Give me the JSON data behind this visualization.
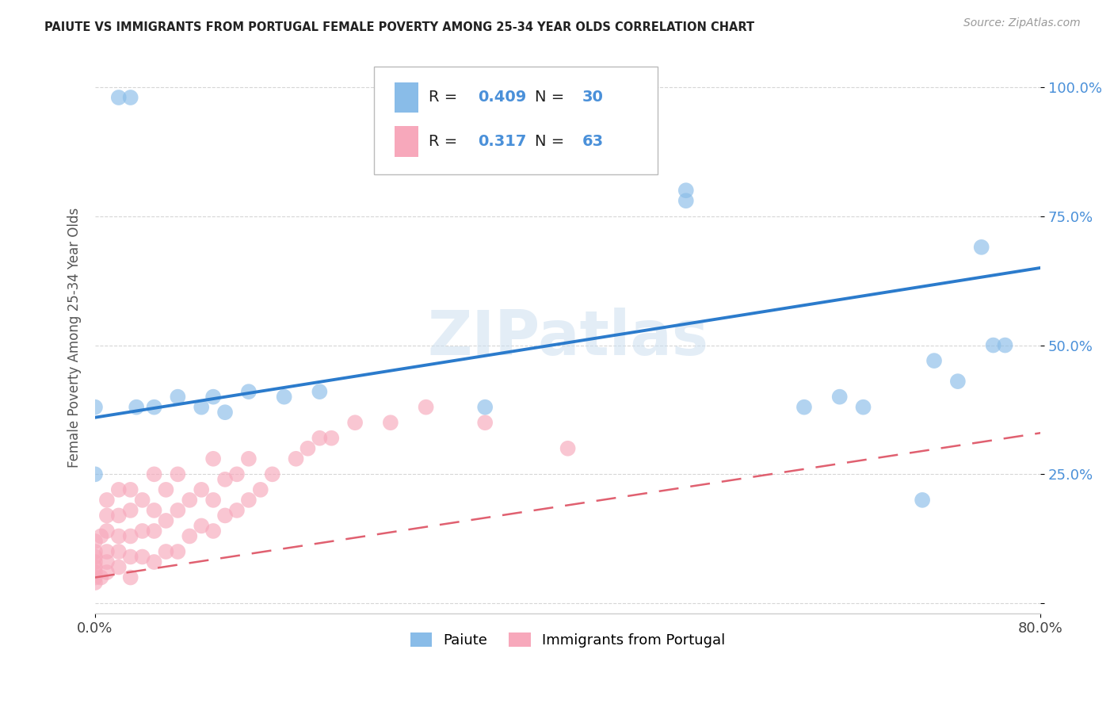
{
  "title": "PAIUTE VS IMMIGRANTS FROM PORTUGAL FEMALE POVERTY AMONG 25-34 YEAR OLDS CORRELATION CHART",
  "source": "Source: ZipAtlas.com",
  "ylabel": "Female Poverty Among 25-34 Year Olds",
  "xlim": [
    0.0,
    0.8
  ],
  "ylim": [
    -0.02,
    1.05
  ],
  "paiute_line_start_y": 0.36,
  "paiute_line_end_y": 0.65,
  "portugal_line_start_y": 0.05,
  "portugal_line_end_y": 0.33,
  "legend_label1": "Paiute",
  "legend_label2": "Immigrants from Portugal",
  "paiute_color": "#89bce8",
  "portugal_color": "#f7a8bb",
  "paiute_line_color": "#2b7bcc",
  "portugal_line_color": "#e06070",
  "watermark": "ZIPatlas",
  "paiute_x": [
    0.02,
    0.03,
    0.0,
    0.0,
    0.035,
    0.05,
    0.07,
    0.09,
    0.1,
    0.11,
    0.13,
    0.16,
    0.19,
    0.33,
    0.5,
    0.5,
    0.6,
    0.63,
    0.65,
    0.7,
    0.71,
    0.73,
    0.75,
    0.76,
    0.77
  ],
  "paiute_y": [
    0.98,
    0.98,
    0.38,
    0.25,
    0.38,
    0.38,
    0.4,
    0.38,
    0.4,
    0.37,
    0.41,
    0.4,
    0.41,
    0.38,
    0.78,
    0.8,
    0.38,
    0.4,
    0.38,
    0.2,
    0.47,
    0.43,
    0.69,
    0.5,
    0.5
  ],
  "portugal_x": [
    0.0,
    0.0,
    0.0,
    0.0,
    0.0,
    0.0,
    0.0,
    0.0,
    0.005,
    0.005,
    0.01,
    0.01,
    0.01,
    0.01,
    0.01,
    0.01,
    0.02,
    0.02,
    0.02,
    0.02,
    0.02,
    0.03,
    0.03,
    0.03,
    0.03,
    0.03,
    0.04,
    0.04,
    0.04,
    0.05,
    0.05,
    0.05,
    0.05,
    0.06,
    0.06,
    0.06,
    0.07,
    0.07,
    0.07,
    0.08,
    0.08,
    0.09,
    0.09,
    0.1,
    0.1,
    0.1,
    0.11,
    0.11,
    0.12,
    0.12,
    0.13,
    0.13,
    0.14,
    0.15,
    0.17,
    0.18,
    0.19,
    0.2,
    0.22,
    0.25,
    0.28,
    0.33,
    0.4
  ],
  "portugal_y": [
    0.04,
    0.05,
    0.06,
    0.07,
    0.08,
    0.09,
    0.1,
    0.12,
    0.05,
    0.13,
    0.06,
    0.08,
    0.1,
    0.14,
    0.17,
    0.2,
    0.07,
    0.1,
    0.13,
    0.17,
    0.22,
    0.05,
    0.09,
    0.13,
    0.18,
    0.22,
    0.09,
    0.14,
    0.2,
    0.08,
    0.14,
    0.18,
    0.25,
    0.1,
    0.16,
    0.22,
    0.1,
    0.18,
    0.25,
    0.13,
    0.2,
    0.15,
    0.22,
    0.14,
    0.2,
    0.28,
    0.17,
    0.24,
    0.18,
    0.25,
    0.2,
    0.28,
    0.22,
    0.25,
    0.28,
    0.3,
    0.32,
    0.32,
    0.35,
    0.35,
    0.38,
    0.35,
    0.3
  ]
}
